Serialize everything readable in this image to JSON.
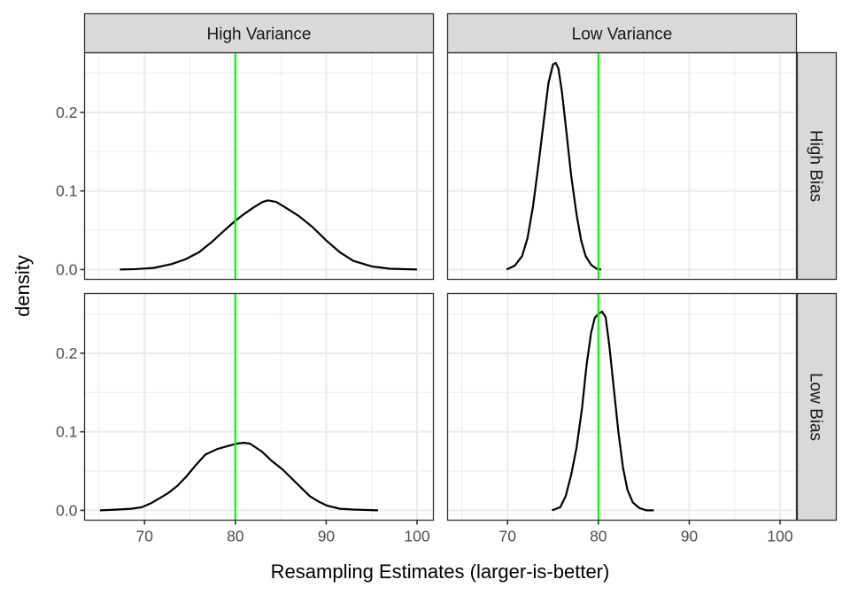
{
  "chart_data": {
    "type": "line",
    "subtype": "faceted density plot",
    "xlabel": "Resampling Estimates (larger-is-better)",
    "ylabel": "density",
    "xlim": [
      63.4,
      101.8
    ],
    "ylim": [
      -0.0125,
      0.276
    ],
    "x_ticks": [
      70,
      80,
      90,
      100
    ],
    "x_tick_labels": [
      "70",
      "80",
      "90",
      "100"
    ],
    "x_minor_ticks": [
      65,
      75,
      85,
      95
    ],
    "y_ticks": [
      0.0,
      0.1,
      0.2
    ],
    "y_tick_labels": [
      "0.0",
      "0.1",
      "0.2"
    ],
    "y_minor_ticks": [
      0.05,
      0.15,
      0.25
    ],
    "grid": true,
    "facet_columns": [
      "High Variance",
      "Low Variance"
    ],
    "facet_rows": [
      "High Bias",
      "Low Bias"
    ],
    "reference_line": {
      "x": 80,
      "color": "#00ff00"
    },
    "line_color": "#000000",
    "panels": [
      {
        "column": "High Variance",
        "row": "High Bias",
        "x": [
          67.3,
          69,
          71,
          73,
          74.5,
          76,
          77.5,
          79,
          80,
          81,
          82,
          83,
          83.6,
          84.5,
          85.5,
          87,
          88.5,
          90,
          91.5,
          93,
          95,
          97,
          100
        ],
        "y": [
          0.0,
          0.0005,
          0.002,
          0.007,
          0.013,
          0.022,
          0.036,
          0.052,
          0.062,
          0.071,
          0.079,
          0.086,
          0.088,
          0.086,
          0.079,
          0.068,
          0.054,
          0.037,
          0.022,
          0.011,
          0.004,
          0.001,
          0.0
        ]
      },
      {
        "column": "Low Variance",
        "row": "High Bias",
        "x": [
          69.9,
          70.8,
          71.6,
          72.2,
          72.8,
          73.4,
          74.0,
          74.5,
          75.0,
          75.3,
          75.6,
          76.0,
          76.5,
          77.0,
          77.6,
          78.1,
          78.6,
          79.2,
          79.8,
          80.3
        ],
        "y": [
          0.0,
          0.005,
          0.017,
          0.04,
          0.08,
          0.133,
          0.19,
          0.237,
          0.261,
          0.263,
          0.256,
          0.225,
          0.173,
          0.12,
          0.07,
          0.037,
          0.017,
          0.006,
          0.001,
          0.0
        ]
      },
      {
        "column": "High Variance",
        "row": "Low Bias",
        "x": [
          65.1,
          67,
          68.5,
          69.7,
          70.7,
          71.6,
          72.6,
          73.6,
          74.6,
          75.6,
          76.7,
          78,
          79.2,
          80.2,
          80.9,
          81.6,
          82.9,
          84,
          85.2,
          86.7,
          88.2,
          89.2,
          90.1,
          91.5,
          93,
          95.7
        ],
        "y": [
          0.0,
          0.001,
          0.002,
          0.004,
          0.009,
          0.015,
          0.022,
          0.031,
          0.043,
          0.057,
          0.071,
          0.078,
          0.082,
          0.085,
          0.086,
          0.085,
          0.075,
          0.063,
          0.052,
          0.035,
          0.018,
          0.011,
          0.006,
          0.002,
          0.001,
          0.0
        ]
      },
      {
        "column": "Low Variance",
        "row": "Low Bias",
        "x": [
          74.9,
          75.8,
          76.4,
          77.0,
          77.6,
          78.2,
          78.7,
          79.2,
          79.6,
          80.0,
          80.4,
          80.8,
          81.2,
          81.7,
          82.2,
          82.7,
          83.2,
          83.8,
          84.5,
          85.3,
          86.1
        ],
        "y": [
          0.0,
          0.004,
          0.018,
          0.045,
          0.08,
          0.13,
          0.185,
          0.226,
          0.245,
          0.25,
          0.253,
          0.246,
          0.21,
          0.155,
          0.1,
          0.055,
          0.026,
          0.01,
          0.003,
          0.0,
          0.0
        ]
      }
    ]
  }
}
